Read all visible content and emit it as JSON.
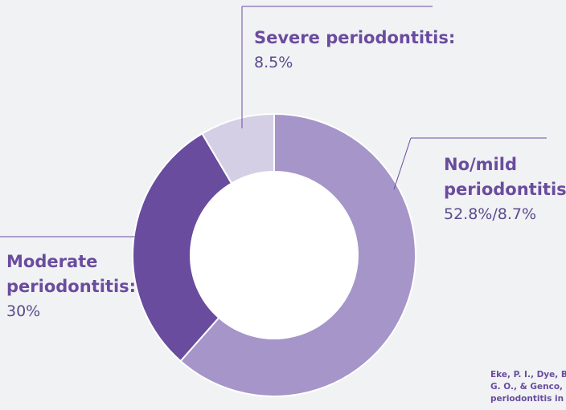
{
  "chart_data": {
    "type": "donut",
    "slices": [
      {
        "name": "No/mild periodontitis:",
        "values": [
          52.8,
          8.7
        ],
        "value_label": "52.8%/8.7%",
        "color": "#a595c9"
      },
      {
        "name": "Moderate periodontitis:",
        "values": [
          30
        ],
        "value_label": "30%",
        "color": "#694c9e"
      },
      {
        "name": "Severe periodontitis:",
        "values": [
          8.5
        ],
        "value_label": "8.5%",
        "color": "#d5cfe6"
      }
    ],
    "source_lines": [
      "Eke, P. I., Dye, B",
      "G. O., & Genco, R",
      "periodontitis in"
    ]
  }
}
